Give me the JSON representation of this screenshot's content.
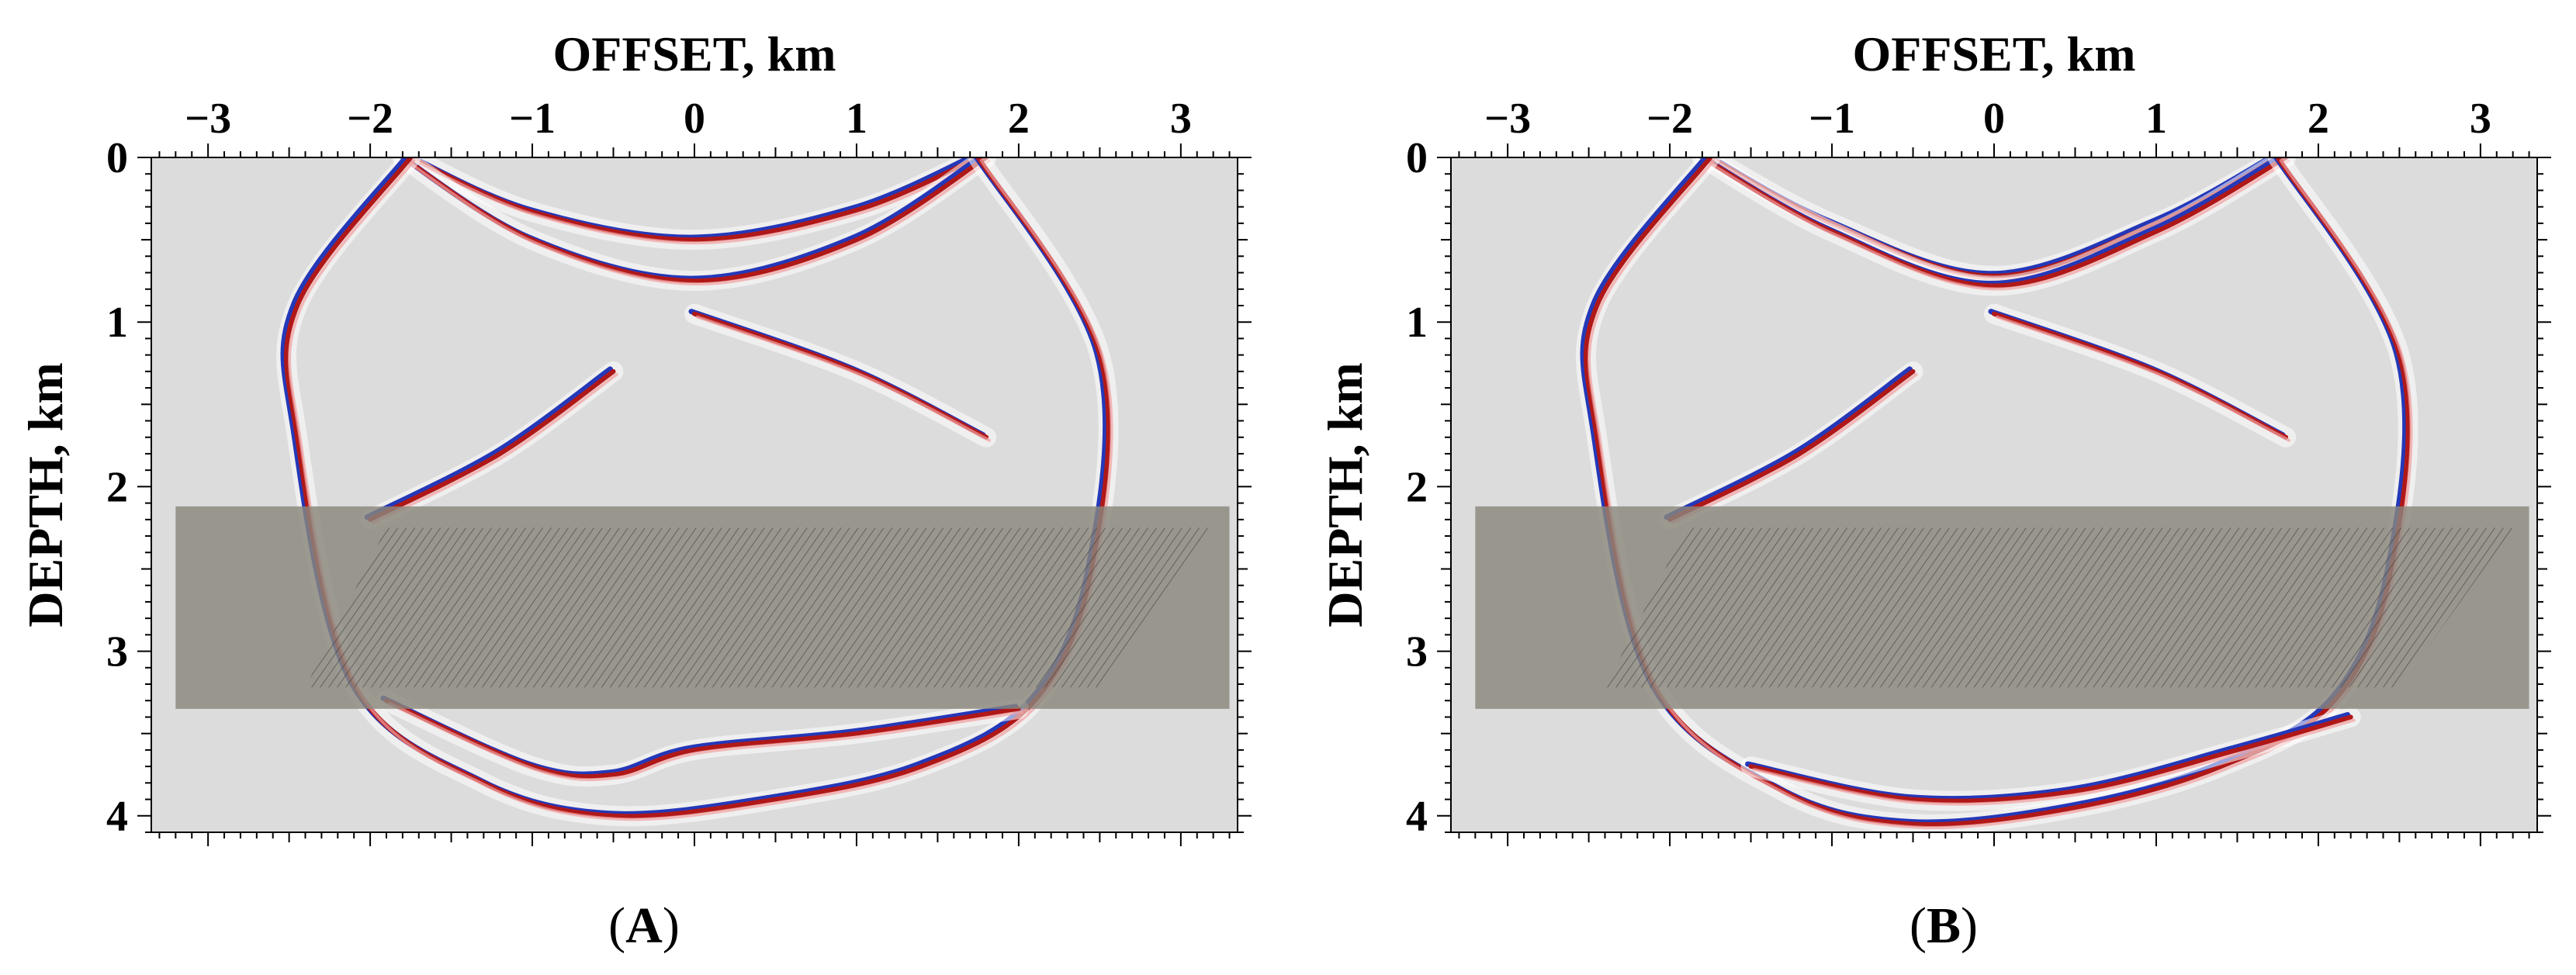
{
  "figure": {
    "panels": [
      {
        "label": "A",
        "caption_open": "(",
        "caption_close": ")"
      },
      {
        "label": "B",
        "caption_open": "(",
        "caption_close": ")"
      }
    ]
  },
  "colors": {
    "background": "#dcdcdc",
    "positive": "#b01818",
    "negative": "#2438b8",
    "shaded_zone": "#8a867c"
  },
  "chart_data": [
    {
      "type": "heatmap",
      "panel": "A",
      "title": "",
      "xlabel": "OFFSET, km",
      "ylabel": "DEPTH, km",
      "x_ticks": [
        -3,
        -2,
        -1,
        0,
        1,
        2,
        3
      ],
      "x_tick_labels": [
        "−3",
        "−2",
        "−1",
        "0",
        "1",
        "2",
        "3"
      ],
      "y_ticks": [
        0,
        1,
        2,
        3,
        4
      ],
      "y_tick_labels": [
        "0",
        "1",
        "2",
        "3",
        "4"
      ],
      "xlim": [
        -3.35,
        3.35
      ],
      "ylim": [
        0,
        4.1
      ],
      "x_axis_position": "top",
      "y_inverted": true,
      "colormap": "red-white-blue",
      "shaded_zone": {
        "x": [
          -3.2,
          3.3
        ],
        "depth": [
          2.12,
          3.35
        ]
      },
      "hatched_zone": {
        "corners": [
          [
            -1.9,
            2.25
          ],
          [
            3.2,
            2.25
          ],
          [
            2.5,
            3.22
          ],
          [
            -2.4,
            3.22
          ]
        ]
      },
      "wavefronts": [
        {
          "shape": "arc",
          "x": [
            -1.75,
            -1.0,
            0.0,
            1.0,
            1.75
          ],
          "depth": [
            0.0,
            0.33,
            0.5,
            0.32,
            0.0
          ]
        },
        {
          "shape": "arc",
          "x": [
            -1.8,
            -1.0,
            0.0,
            1.0,
            1.8
          ],
          "depth": [
            0.0,
            0.5,
            0.75,
            0.5,
            0.0
          ]
        },
        {
          "shape": "circle",
          "x": [
            -1.75,
            -2.45,
            -2.45,
            -2.1,
            -1.3,
            -0.5,
            0.5,
            1.4,
            2.1,
            2.45,
            2.5,
            1.75
          ],
          "depth": [
            0.0,
            0.9,
            1.7,
            3.2,
            3.8,
            4.0,
            3.9,
            3.7,
            3.3,
            2.5,
            1.2,
            0.0
          ]
        },
        {
          "shape": "arc",
          "x": [
            -1.9,
            -1.0,
            -0.5,
            0.0,
            1.0,
            2.0
          ],
          "depth": [
            3.3,
            3.7,
            3.75,
            3.6,
            3.5,
            3.35
          ]
        },
        {
          "shape": "arc",
          "x": [
            0.0,
            1.0,
            1.8
          ],
          "depth": [
            0.95,
            1.3,
            1.7
          ]
        },
        {
          "shape": "arc",
          "x": [
            -2.0,
            -1.2,
            -0.5
          ],
          "depth": [
            2.2,
            1.8,
            1.3
          ]
        }
      ]
    },
    {
      "type": "heatmap",
      "panel": "B",
      "title": "",
      "xlabel": "OFFSET, km",
      "ylabel": "DEPTH, km",
      "x_ticks": [
        -3,
        -2,
        -1,
        0,
        1,
        2,
        3
      ],
      "x_tick_labels": [
        "−3",
        "−2",
        "−1",
        "0",
        "1",
        "2",
        "3"
      ],
      "y_ticks": [
        0,
        1,
        2,
        3,
        4
      ],
      "y_tick_labels": [
        "0",
        "1",
        "2",
        "3",
        "4"
      ],
      "xlim": [
        -3.35,
        3.35
      ],
      "ylim": [
        0,
        4.1
      ],
      "x_axis_position": "top",
      "y_inverted": true,
      "colormap": "red-white-blue",
      "shaded_zone": {
        "x": [
          -3.2,
          3.3
        ],
        "depth": [
          2.12,
          3.35
        ]
      },
      "hatched_zone": {
        "corners": [
          [
            -1.9,
            2.25
          ],
          [
            3.2,
            2.25
          ],
          [
            2.5,
            3.22
          ],
          [
            -2.4,
            3.22
          ]
        ]
      },
      "wavefronts": [
        {
          "shape": "arc",
          "x": [
            -1.75,
            -1.0,
            0.0,
            1.0,
            1.75
          ],
          "depth": [
            0.0,
            0.4,
            0.72,
            0.4,
            0.0
          ]
        },
        {
          "shape": "arc",
          "x": [
            -1.8,
            -1.0,
            0.0,
            1.0,
            1.8
          ],
          "depth": [
            0.0,
            0.45,
            0.78,
            0.45,
            0.0
          ]
        },
        {
          "shape": "circle",
          "x": [
            -1.75,
            -2.45,
            -2.45,
            -2.1,
            -1.3,
            -0.5,
            0.5,
            1.4,
            2.1,
            2.45,
            2.5,
            1.75
          ],
          "depth": [
            0.0,
            0.9,
            1.7,
            3.2,
            3.85,
            4.05,
            3.95,
            3.7,
            3.3,
            2.5,
            1.2,
            0.0
          ]
        },
        {
          "shape": "arc",
          "x": [
            -1.5,
            -0.5,
            0.5,
            1.5,
            2.2
          ],
          "depth": [
            3.7,
            3.9,
            3.85,
            3.6,
            3.4
          ]
        },
        {
          "shape": "arc",
          "x": [
            0.0,
            1.0,
            1.8
          ],
          "depth": [
            0.95,
            1.3,
            1.7
          ]
        },
        {
          "shape": "arc",
          "x": [
            -2.0,
            -1.2,
            -0.5
          ],
          "depth": [
            2.2,
            1.8,
            1.3
          ]
        }
      ]
    }
  ]
}
